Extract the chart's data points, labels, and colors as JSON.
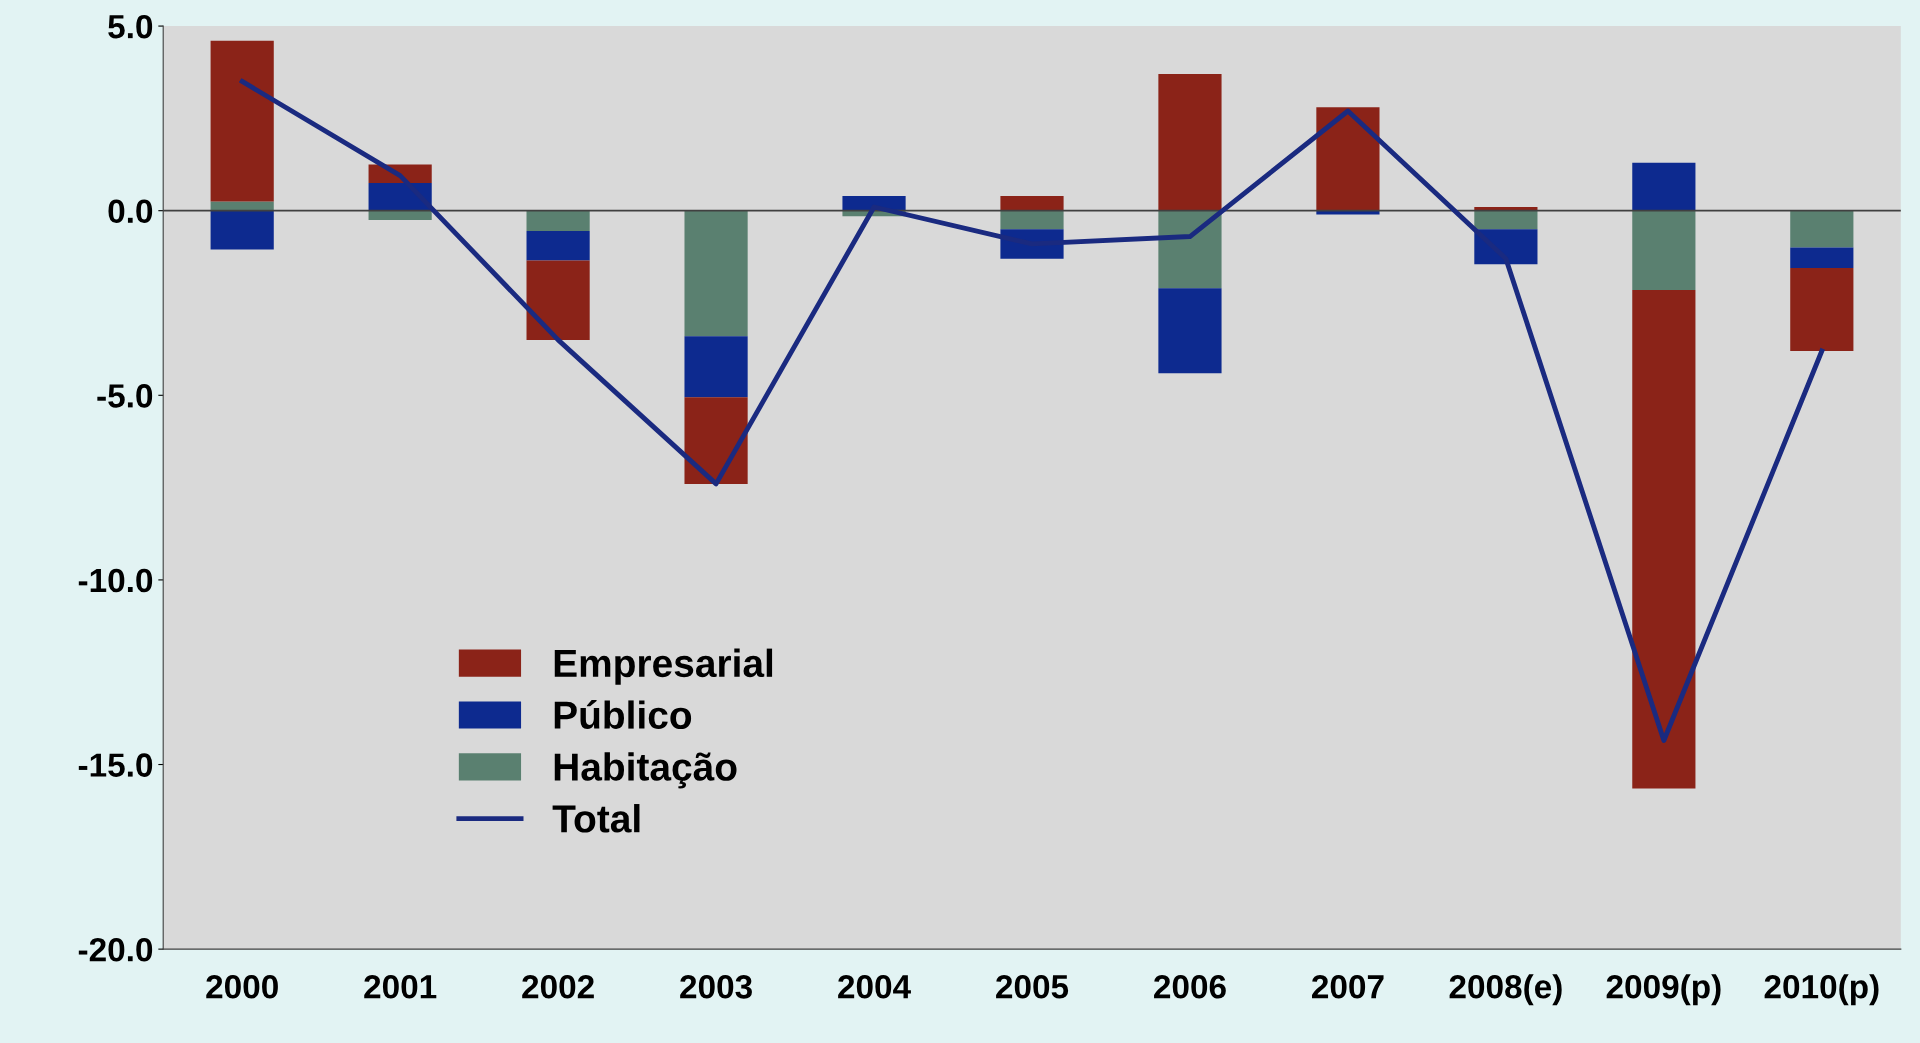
{
  "chart_data": {
    "type": "bar",
    "stacked": true,
    "categories": [
      "2000",
      "2001",
      "2002",
      "2003",
      "2004",
      "2005",
      "2006",
      "2007",
      "2008(e)",
      "2009(p)",
      "2010(p)"
    ],
    "series": [
      {
        "name": "Habitação",
        "color": "#5a8070",
        "values": [
          0.25,
          -0.25,
          -0.55,
          -3.4,
          -0.15,
          -0.5,
          -2.1,
          0,
          -0.5,
          -2.15,
          -1.0
        ]
      },
      {
        "name": "Público",
        "color": "#0d2a8f",
        "values": [
          -1.05,
          0.75,
          -0.8,
          -1.65,
          0.4,
          -0.8,
          -2.3,
          -0.1,
          -0.95,
          1.3,
          -0.55
        ]
      },
      {
        "name": "Empresarial",
        "color": "#8b2318",
        "values": [
          4.35,
          0.5,
          -2.15,
          -2.35,
          0,
          0.4,
          3.7,
          2.8,
          0.1,
          -13.5,
          -2.25
        ]
      },
      {
        "name": "Total",
        "type": "line",
        "color": "#1a2a80",
        "values": [
          3.5,
          0.95,
          -3.5,
          -7.4,
          0.1,
          -0.9,
          -0.7,
          2.7,
          -1.3,
          -14.35,
          -3.8
        ]
      }
    ],
    "ylim": [
      -20,
      5
    ],
    "yticks": [
      {
        "value": -20,
        "label": "-20.0"
      },
      {
        "value": -15,
        "label": "-15.0"
      },
      {
        "value": -10,
        "label": "-10.0"
      },
      {
        "value": -5,
        "label": "-5.0"
      },
      {
        "value": 0,
        "label": "0.0"
      },
      {
        "value": 5,
        "label": "5.0"
      }
    ],
    "ref_lines": [
      {
        "axis": "y",
        "value": 0,
        "color": "#404040"
      }
    ],
    "legend": "bottom left",
    "grid": false
  }
}
